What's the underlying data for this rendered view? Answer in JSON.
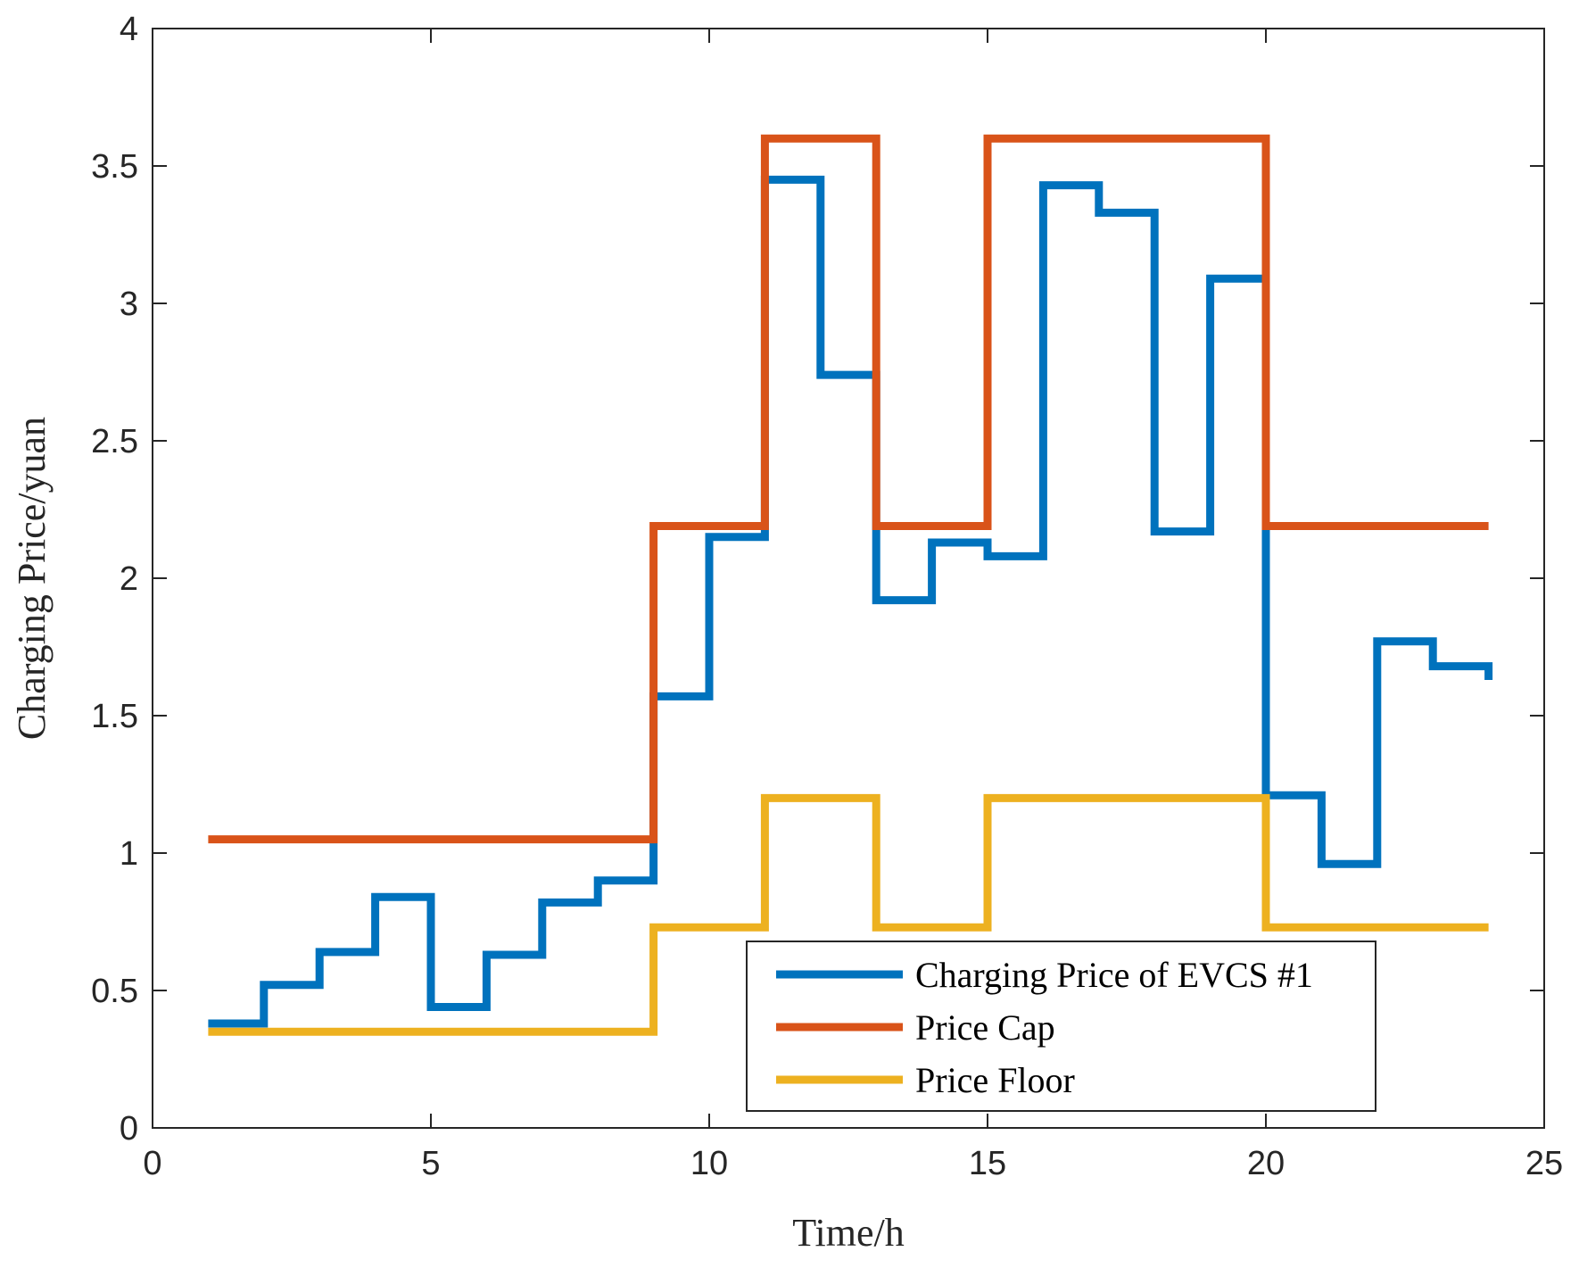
{
  "chart_data": {
    "type": "line",
    "step": true,
    "title": "",
    "xlabel": "Time/h",
    "ylabel": "Charging Price/yuan",
    "xlim": [
      0,
      25
    ],
    "ylim": [
      0,
      4
    ],
    "xticks": [
      0,
      5,
      10,
      15,
      20,
      25
    ],
    "yticks": [
      0,
      0.5,
      1,
      1.5,
      2,
      2.5,
      3,
      3.5,
      4
    ],
    "xtick_labels": [
      "0",
      "5",
      "10",
      "15",
      "20",
      "25"
    ],
    "ytick_labels": [
      "0",
      "0.5",
      "1",
      "1.5",
      "2",
      "2.5",
      "3",
      "3.5",
      "4"
    ],
    "grid": false,
    "legend_position": "bottom-right",
    "series": [
      {
        "name": "Charging Price of EVCS #1",
        "color": "#0072BD",
        "x": [
          1,
          2,
          3,
          4,
          5,
          6,
          7,
          8,
          9,
          10,
          11,
          12,
          13,
          14,
          15,
          16,
          17,
          18,
          19,
          20,
          21,
          22,
          23,
          24
        ],
        "values": [
          0.38,
          0.52,
          0.64,
          0.84,
          0.44,
          0.63,
          0.82,
          0.9,
          1.57,
          2.15,
          3.45,
          2.74,
          1.92,
          2.13,
          2.08,
          3.43,
          3.33,
          2.17,
          3.09,
          1.21,
          0.96,
          1.77,
          1.68,
          1.63
        ]
      },
      {
        "name": "Price Cap",
        "color": "#D95319",
        "x": [
          1,
          2,
          3,
          4,
          5,
          6,
          7,
          8,
          9,
          10,
          11,
          12,
          13,
          14,
          15,
          16,
          17,
          18,
          19,
          20,
          21,
          22,
          23,
          24
        ],
        "values": [
          1.05,
          1.05,
          1.05,
          1.05,
          1.05,
          1.05,
          1.05,
          1.05,
          2.19,
          2.19,
          3.6,
          3.6,
          2.19,
          2.19,
          3.6,
          3.6,
          3.6,
          3.6,
          3.6,
          2.19,
          2.19,
          2.19,
          2.19,
          2.19
        ]
      },
      {
        "name": "Price Floor",
        "color": "#EDB120",
        "x": [
          1,
          2,
          3,
          4,
          5,
          6,
          7,
          8,
          9,
          10,
          11,
          12,
          13,
          14,
          15,
          16,
          17,
          18,
          19,
          20,
          21,
          22,
          23,
          24
        ],
        "values": [
          0.35,
          0.35,
          0.35,
          0.35,
          0.35,
          0.35,
          0.35,
          0.35,
          0.73,
          0.73,
          1.2,
          1.2,
          0.73,
          0.73,
          1.2,
          1.2,
          1.2,
          1.2,
          1.2,
          0.73,
          0.73,
          0.73,
          0.73,
          0.73
        ]
      }
    ]
  }
}
